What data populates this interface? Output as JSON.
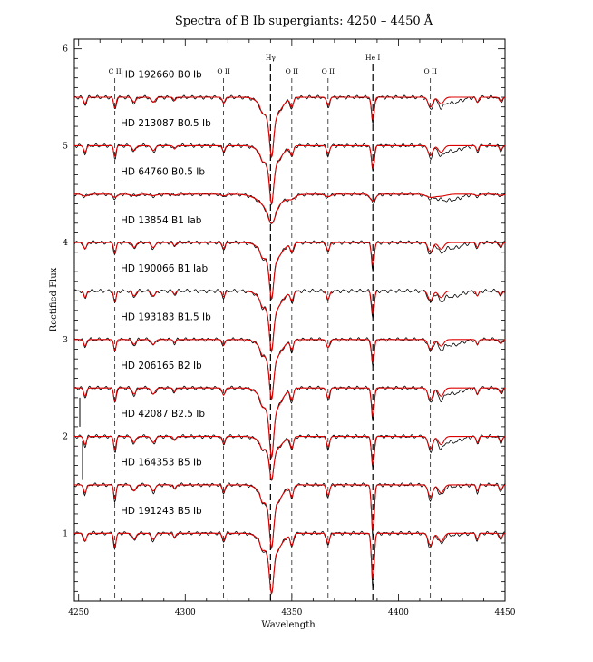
{
  "chart_data": {
    "type": "line",
    "title": "Spectra of B Ib supergiants: 4250 – 4450 Å",
    "xlabel": "Wavelength",
    "ylabel": "Rectified Flux",
    "xlim": [
      4248,
      4450
    ],
    "ylim": [
      0.3,
      6.1
    ],
    "xticks": [
      4250,
      4300,
      4350,
      4400,
      4450
    ],
    "yticks": [
      1,
      2,
      3,
      4,
      5,
      6
    ],
    "grid": false,
    "colors": {
      "observed": "#000000",
      "model": "#dd0000"
    },
    "line_markers": [
      {
        "label": "C II",
        "x": 4267
      },
      {
        "label": "O II",
        "x": 4318
      },
      {
        "label": "Hγ",
        "x": 4340
      },
      {
        "label": "O II",
        "x": 4350
      },
      {
        "label": "O II",
        "x": 4367
      },
      {
        "label": "He I",
        "x": 4388
      },
      {
        "label": "O II",
        "x": 4415
      }
    ],
    "series": [
      {
        "name": "HD 192660  B0 Ib",
        "continuum": 5.5,
        "hg_depth": 0.62
      },
      {
        "name": "HD 213087  B0.5 Ib",
        "continuum": 5.0,
        "hg_depth": 0.6
      },
      {
        "name": "HD 64760   B0.5 Ib",
        "continuum": 4.5,
        "hg_depth": 0.3
      },
      {
        "name": "HD 13854   B1 Iab",
        "continuum": 4.0,
        "hg_depth": 0.58
      },
      {
        "name": "HD 190066  B1 Iab",
        "continuum": 3.5,
        "hg_depth": 0.62
      },
      {
        "name": "HD 193183  B1.5 Ib",
        "continuum": 3.0,
        "hg_depth": 0.62
      },
      {
        "name": "HD 206165  B2 Ib",
        "continuum": 2.5,
        "hg_depth": 0.72
      },
      {
        "name": "HD 42087   B2.5 Ib",
        "continuum": 2.0,
        "hg_depth": 0.45
      },
      {
        "name": "HD 164353  B5 Ib",
        "continuum": 1.5,
        "hg_depth": 0.65
      },
      {
        "name": "HD 191243  B5 Ib",
        "continuum": 1.0,
        "hg_depth": 0.62
      }
    ]
  }
}
